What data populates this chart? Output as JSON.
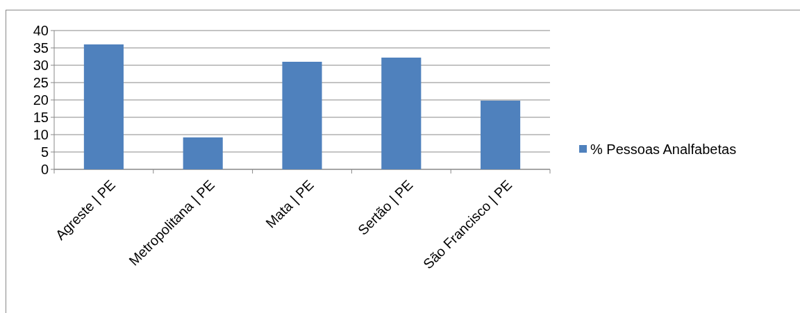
{
  "chart_data": {
    "type": "bar",
    "categories": [
      "Agreste | PE",
      "Metropolitana | PE",
      "Mata | PE",
      "Sertão | PE",
      "São Francisco | PE"
    ],
    "series": [
      {
        "name": "% Pessoas Analfabetas",
        "color": "#4f81bd",
        "values": [
          36.0,
          9.2,
          31.0,
          32.2,
          19.8
        ]
      }
    ],
    "ylim": [
      0,
      40
    ],
    "yticks": [
      0,
      5,
      10,
      15,
      20,
      25,
      30,
      35,
      40
    ],
    "grid": "y",
    "legend": "right"
  }
}
